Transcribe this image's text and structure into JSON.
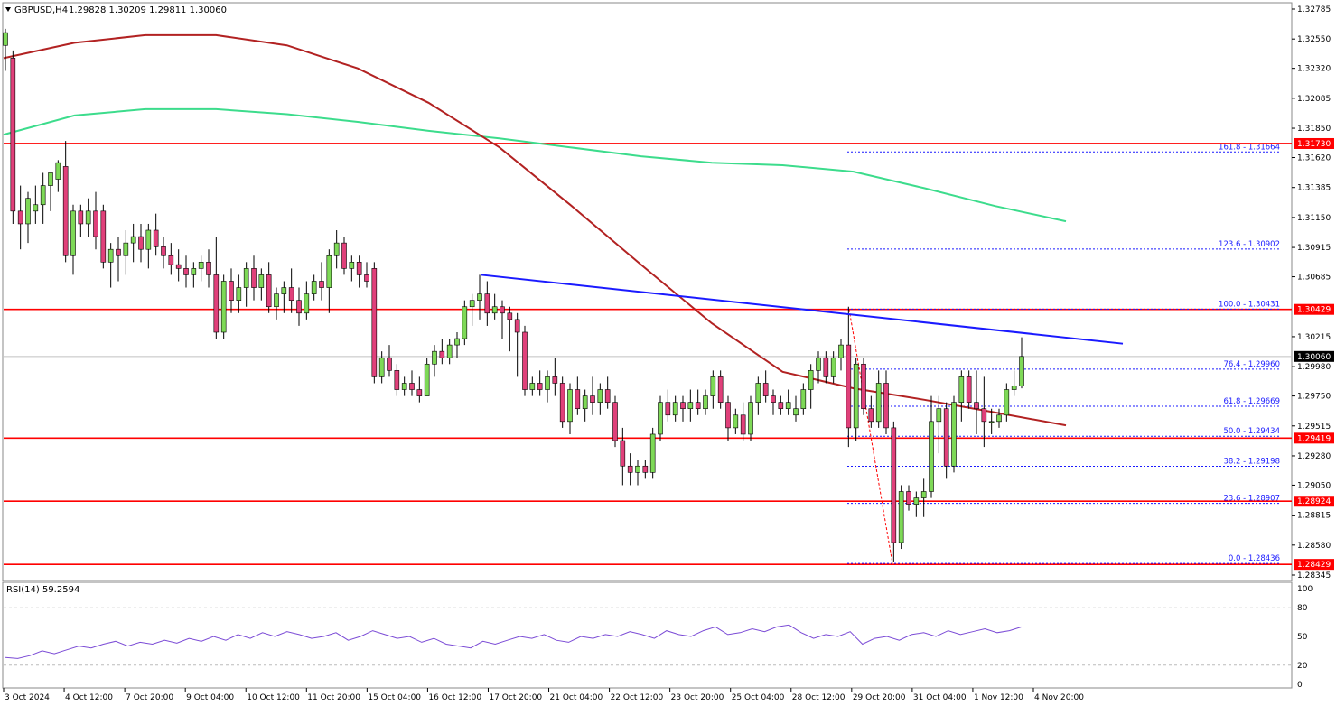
{
  "header": {
    "symbol": "GBPUSD,H4",
    "ohlc": "1.29828 1.30209 1.29811 1.30060"
  },
  "rsi": {
    "label": "RSI(14) 59.2594"
  },
  "colors": {
    "bull": "#7ed957",
    "bear": "#e0407a",
    "level": "#ff0000",
    "fib": "#1a1aff",
    "trend": "#1a1aff",
    "sma_fast": "#b22222",
    "sma_slow": "#3cdc8c",
    "rsi": "#7b4bd6"
  },
  "chart_data": {
    "type": "candlestick",
    "price_axis": {
      "ylim": [
        1.28345,
        1.32785
      ],
      "ticks": [
        "1.32785",
        "1.32550",
        "1.32320",
        "1.32085",
        "1.31850",
        "1.31620",
        "1.31385",
        "1.31150",
        "1.30915",
        "1.30685",
        "1.30215",
        "1.29980",
        "1.29750",
        "1.29515",
        "1.29280",
        "1.29050",
        "1.28815",
        "1.28580",
        "1.28345"
      ]
    },
    "current_price": "1.30060",
    "time_axis": {
      "labels": [
        "3 Oct 2024",
        "4 Oct 12:00",
        "7 Oct 20:00",
        "9 Oct 04:00",
        "10 Oct 12:00",
        "11 Oct 20:00",
        "15 Oct 04:00",
        "16 Oct 12:00",
        "17 Oct 20:00",
        "21 Oct 04:00",
        "22 Oct 12:00",
        "23 Oct 20:00",
        "25 Oct 04:00",
        "28 Oct 12:00",
        "29 Oct 20:00",
        "31 Oct 04:00",
        "1 Nov 12:00",
        "4 Nov 20:00"
      ]
    },
    "levels": [
      {
        "value": 1.3173,
        "label": "1.31730"
      },
      {
        "value": 1.30429,
        "label": "1.30429"
      },
      {
        "value": 1.29419,
        "label": "1.29419"
      },
      {
        "value": 1.28924,
        "label": "1.28924"
      },
      {
        "value": 1.28429,
        "label": "1.28429"
      }
    ],
    "fib_levels": [
      {
        "value": 1.31664,
        "label": "161.8 - 1.31664"
      },
      {
        "value": 1.30902,
        "label": "123.6 - 1.30902"
      },
      {
        "value": 1.30431,
        "label": "100.0 - 1.30431"
      },
      {
        "value": 1.2996,
        "label": "76.4 - 1.29960"
      },
      {
        "value": 1.29669,
        "label": "61.8 - 1.29669"
      },
      {
        "value": 1.29434,
        "label": "50.0 - 1.29434"
      },
      {
        "value": 1.29198,
        "label": "38.2 - 1.29198"
      },
      {
        "value": 1.28907,
        "label": "23.6 - 1.28907"
      },
      {
        "value": 1.28436,
        "label": "0.0 - 1.28436"
      }
    ],
    "trendline": {
      "start": [
        0,
        1.307
      ],
      "end": [
        1,
        1.3016
      ]
    },
    "candles": [
      [
        1.325,
        1.3263,
        1.323,
        1.326
      ],
      [
        1.324,
        1.3246,
        1.311,
        1.312
      ],
      [
        1.312,
        1.314,
        1.309,
        1.311
      ],
      [
        1.311,
        1.3135,
        1.3095,
        1.313
      ],
      [
        1.312,
        1.314,
        1.311,
        1.3125
      ],
      [
        1.3125,
        1.315,
        1.311,
        1.314
      ],
      [
        1.314,
        1.315,
        1.312,
        1.315
      ],
      [
        1.3145,
        1.316,
        1.3135,
        1.3158
      ],
      [
        1.3155,
        1.3175,
        1.308,
        1.3085
      ],
      [
        1.3085,
        1.3125,
        1.307,
        1.312
      ],
      [
        1.312,
        1.3125,
        1.31,
        1.311
      ],
      [
        1.311,
        1.313,
        1.31,
        1.312
      ],
      [
        1.312,
        1.3135,
        1.309,
        1.31
      ],
      [
        1.312,
        1.3125,
        1.3075,
        1.308
      ],
      [
        1.308,
        1.3095,
        1.306,
        1.309
      ],
      [
        1.309,
        1.31,
        1.3065,
        1.3085
      ],
      [
        1.3085,
        1.3105,
        1.307,
        1.3095
      ],
      [
        1.3095,
        1.311,
        1.308,
        1.31
      ],
      [
        1.31,
        1.311,
        1.308,
        1.309
      ],
      [
        1.309,
        1.311,
        1.3075,
        1.3105
      ],
      [
        1.3105,
        1.3118,
        1.3085,
        1.3092
      ],
      [
        1.3092,
        1.31,
        1.3075,
        1.3085
      ],
      [
        1.3085,
        1.3095,
        1.307,
        1.3078
      ],
      [
        1.3078,
        1.309,
        1.3065,
        1.3075
      ],
      [
        1.3075,
        1.3085,
        1.306,
        1.307
      ],
      [
        1.307,
        1.308,
        1.306,
        1.3075
      ],
      [
        1.3075,
        1.3085,
        1.3065,
        1.308
      ],
      [
        1.308,
        1.309,
        1.306,
        1.307
      ],
      [
        1.307,
        1.31,
        1.302,
        1.3025
      ],
      [
        1.3025,
        1.307,
        1.302,
        1.3065
      ],
      [
        1.3065,
        1.3075,
        1.304,
        1.305
      ],
      [
        1.305,
        1.307,
        1.304,
        1.306
      ],
      [
        1.306,
        1.308,
        1.3045,
        1.3075
      ],
      [
        1.3075,
        1.3085,
        1.305,
        1.306
      ],
      [
        1.306,
        1.3075,
        1.305,
        1.307
      ],
      [
        1.307,
        1.308,
        1.304,
        1.3045
      ],
      [
        1.3045,
        1.306,
        1.3035,
        1.3055
      ],
      [
        1.3055,
        1.3065,
        1.304,
        1.306
      ],
      [
        1.306,
        1.3075,
        1.304,
        1.305
      ],
      [
        1.305,
        1.306,
        1.303,
        1.304
      ],
      [
        1.304,
        1.3065,
        1.3035,
        1.3055
      ],
      [
        1.3055,
        1.307,
        1.305,
        1.3065
      ],
      [
        1.3065,
        1.308,
        1.305,
        1.306
      ],
      [
        1.306,
        1.309,
        1.304,
        1.3085
      ],
      [
        1.3085,
        1.3105,
        1.3075,
        1.3095
      ],
      [
        1.3095,
        1.31,
        1.307,
        1.3075
      ],
      [
        1.3075,
        1.3085,
        1.3065,
        1.308
      ],
      [
        1.308,
        1.3085,
        1.306,
        1.307
      ],
      [
        1.307,
        1.308,
        1.306,
        1.3065
      ],
      [
        1.3075,
        1.308,
        1.2985,
        1.299
      ],
      [
        1.299,
        1.301,
        1.2985,
        1.3005
      ],
      [
        1.3005,
        1.3015,
        1.299,
        1.2995
      ],
      [
        1.2995,
        1.3,
        1.2975,
        1.298
      ],
      [
        1.298,
        1.299,
        1.2975,
        1.2985
      ],
      [
        1.2985,
        1.2995,
        1.2975,
        1.298
      ],
      [
        1.298,
        1.299,
        1.297,
        1.2975
      ],
      [
        1.2975,
        1.3005,
        1.2975,
        1.3
      ],
      [
        1.3,
        1.3015,
        1.299,
        1.301
      ],
      [
        1.301,
        1.302,
        1.3,
        1.3005
      ],
      [
        1.3005,
        1.302,
        1.3,
        1.3015
      ],
      [
        1.3015,
        1.3025,
        1.3005,
        1.302
      ],
      [
        1.302,
        1.305,
        1.3015,
        1.3045
      ],
      [
        1.3045,
        1.3055,
        1.303,
        1.305
      ],
      [
        1.305,
        1.307,
        1.3035,
        1.3055
      ],
      [
        1.3055,
        1.3065,
        1.303,
        1.304
      ],
      [
        1.304,
        1.3055,
        1.3035,
        1.3045
      ],
      [
        1.3045,
        1.305,
        1.302,
        1.304
      ],
      [
        1.304,
        1.3045,
        1.301,
        1.3035
      ],
      [
        1.3035,
        1.304,
        1.299,
        1.3025
      ],
      [
        1.3025,
        1.303,
        1.2975,
        1.298
      ],
      [
        1.298,
        1.299,
        1.2975,
        1.2985
      ],
      [
        1.2985,
        1.2995,
        1.2975,
        1.298
      ],
      [
        1.298,
        1.2995,
        1.297,
        1.299
      ],
      [
        1.299,
        1.3005,
        1.2975,
        1.2985
      ],
      [
        1.2985,
        1.299,
        1.295,
        1.2955
      ],
      [
        1.2955,
        1.2985,
        1.2945,
        1.298
      ],
      [
        1.298,
        1.299,
        1.296,
        1.2965
      ],
      [
        1.2965,
        1.298,
        1.2955,
        1.2975
      ],
      [
        1.2975,
        1.299,
        1.296,
        1.297
      ],
      [
        1.297,
        1.2985,
        1.296,
        1.298
      ],
      [
        1.298,
        1.299,
        1.2965,
        1.297
      ],
      [
        1.297,
        1.2975,
        1.2935,
        1.294
      ],
      [
        1.294,
        1.295,
        1.2905,
        1.292
      ],
      [
        1.292,
        1.293,
        1.2905,
        1.2915
      ],
      [
        1.2915,
        1.2925,
        1.2905,
        1.292
      ],
      [
        1.292,
        1.2925,
        1.291,
        1.2915
      ],
      [
        1.2915,
        1.295,
        1.291,
        1.2945
      ],
      [
        1.2945,
        1.2975,
        1.294,
        1.297
      ],
      [
        1.297,
        1.298,
        1.2955,
        1.296
      ],
      [
        1.296,
        1.2975,
        1.2955,
        1.297
      ],
      [
        1.297,
        1.2975,
        1.2955,
        1.2965
      ],
      [
        1.2965,
        1.298,
        1.2955,
        1.297
      ],
      [
        1.297,
        1.298,
        1.296,
        1.2965
      ],
      [
        1.2965,
        1.298,
        1.296,
        1.2975
      ],
      [
        1.2975,
        1.2995,
        1.2965,
        1.299
      ],
      [
        1.299,
        1.2995,
        1.2965,
        1.297
      ],
      [
        1.297,
        1.2975,
        1.294,
        1.295
      ],
      [
        1.295,
        1.2965,
        1.2945,
        1.296
      ],
      [
        1.296,
        1.297,
        1.294,
        1.2945
      ],
      [
        1.2945,
        1.2975,
        1.294,
        1.297
      ],
      [
        1.297,
        1.299,
        1.296,
        1.2985
      ],
      [
        1.2985,
        1.2995,
        1.297,
        1.2975
      ],
      [
        1.2975,
        1.298,
        1.296,
        1.297
      ],
      [
        1.297,
        1.2975,
        1.296,
        1.2965
      ],
      [
        1.2965,
        1.298,
        1.296,
        1.297
      ],
      [
        1.296,
        1.2975,
        1.2955,
        1.2965
      ],
      [
        1.2965,
        1.2985,
        1.296,
        1.298
      ],
      [
        1.298,
        1.3,
        1.2965,
        1.2995
      ],
      [
        1.2995,
        1.301,
        1.2985,
        1.3005
      ],
      [
        1.3005,
        1.301,
        1.2985,
        1.299
      ],
      [
        1.299,
        1.301,
        1.2985,
        1.3005
      ],
      [
        1.3005,
        1.302,
        1.2995,
        1.3015
      ],
      [
        1.3015,
        1.3045,
        1.2935,
        1.295
      ],
      [
        1.295,
        1.3005,
        1.294,
        1.3
      ],
      [
        1.3,
        1.3005,
        1.296,
        1.2965
      ],
      [
        1.2965,
        1.2975,
        1.295,
        1.2955
      ],
      [
        1.2955,
        1.2995,
        1.295,
        1.2985
      ],
      [
        1.2985,
        1.2995,
        1.2945,
        1.295
      ],
      [
        1.295,
        1.2955,
        1.2845,
        1.286
      ],
      [
        1.286,
        1.2905,
        1.2855,
        1.29
      ],
      [
        1.29,
        1.2905,
        1.2885,
        1.289
      ],
      [
        1.289,
        1.29,
        1.288,
        1.2895
      ],
      [
        1.2895,
        1.291,
        1.288,
        1.29
      ],
      [
        1.29,
        1.2975,
        1.2895,
        1.2955
      ],
      [
        1.2955,
        1.2975,
        1.293,
        1.2965
      ],
      [
        1.2965,
        1.297,
        1.291,
        1.292
      ],
      [
        1.292,
        1.2975,
        1.2915,
        1.297
      ],
      [
        1.297,
        1.2995,
        1.2955,
        1.299
      ],
      [
        1.299,
        1.2995,
        1.2965,
        1.297
      ],
      [
        1.297,
        1.2995,
        1.2945,
        1.2965
      ],
      [
        1.2965,
        1.299,
        1.2935,
        1.2955
      ],
      [
        1.2955,
        1.2965,
        1.2945,
        1.2955
      ],
      [
        1.2955,
        1.2965,
        1.295,
        1.296
      ],
      [
        1.296,
        1.2985,
        1.2955,
        1.298
      ],
      [
        1.298,
        1.2995,
        1.2975,
        1.2983
      ],
      [
        1.2983,
        1.3021,
        1.2981,
        1.3006
      ]
    ],
    "sma_fast": [
      1.324,
      1.3252,
      1.3258,
      1.3258,
      1.325,
      1.3232,
      1.3205,
      1.317,
      1.3125,
      1.3078,
      1.3032,
      1.2994,
      1.2981,
      1.2972,
      1.2962,
      1.2952
    ],
    "sma_slow": [
      1.318,
      1.3195,
      1.32,
      1.32,
      1.3196,
      1.319,
      1.3183,
      1.3177,
      1.317,
      1.3163,
      1.3158,
      1.3156,
      1.3151,
      1.3138,
      1.3124,
      1.3112
    ],
    "rsi": {
      "ylim": [
        0,
        100
      ],
      "ticks": [
        "100",
        "80",
        "50",
        "20",
        "0"
      ],
      "values": [
        28,
        27,
        30,
        35,
        32,
        36,
        40,
        38,
        42,
        45,
        40,
        44,
        42,
        46,
        43,
        48,
        45,
        50,
        46,
        52,
        48,
        54,
        50,
        55,
        52,
        48,
        50,
        54,
        46,
        50,
        56,
        52,
        48,
        50,
        44,
        48,
        42,
        40,
        38,
        45,
        42,
        46,
        50,
        48,
        52,
        46,
        44,
        50,
        48,
        52,
        50,
        55,
        52,
        48,
        56,
        52,
        50,
        56,
        60,
        52,
        54,
        58,
        55,
        60,
        62,
        54,
        48,
        52,
        50,
        55,
        42,
        48,
        50,
        46,
        52,
        54,
        50,
        56,
        52,
        55,
        58,
        54,
        56,
        60
      ]
    }
  }
}
